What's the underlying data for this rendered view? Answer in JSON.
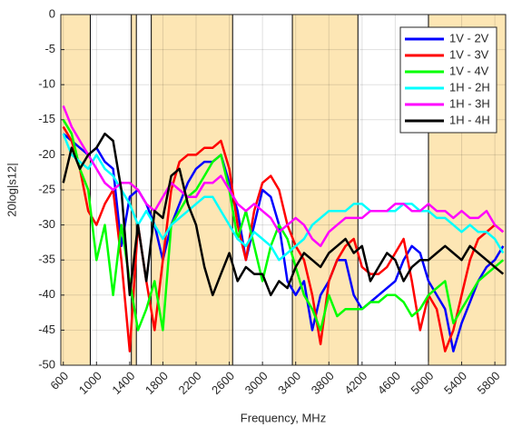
{
  "chart_data": {
    "type": "line",
    "x_label": "Frequency, MHz",
    "y_label": "20log|s12|",
    "xlim": [
      570,
      5930
    ],
    "ylim": [
      -50,
      0
    ],
    "xticks": [
      600,
      1000,
      1400,
      1800,
      2200,
      2600,
      3000,
      3400,
      3800,
      4200,
      4600,
      5000,
      5400,
      5800
    ],
    "yticks": [
      0,
      -5,
      -10,
      -15,
      -20,
      -25,
      -30,
      -35,
      -40,
      -45,
      -50
    ],
    "grid": true,
    "legend": "top-right",
    "bands": [
      [
        570,
        925
      ],
      [
        1420,
        1480
      ],
      [
        1660,
        2640
      ],
      [
        3360,
        4150
      ],
      [
        5000,
        5930
      ]
    ],
    "band_color": "#fde6b4",
    "x": [
      600,
      700,
      800,
      900,
      1000,
      1100,
      1200,
      1300,
      1400,
      1500,
      1600,
      1700,
      1800,
      1900,
      2000,
      2100,
      2200,
      2300,
      2400,
      2500,
      2600,
      2700,
      2800,
      2900,
      3000,
      3100,
      3200,
      3300,
      3400,
      3500,
      3600,
      3700,
      3800,
      3900,
      4000,
      4100,
      4200,
      4300,
      4400,
      4500,
      4600,
      4700,
      4800,
      4900,
      5000,
      5100,
      5200,
      5300,
      5400,
      5500,
      5600,
      5700,
      5800,
      5900
    ],
    "series": [
      {
        "name": "1V - 2V",
        "color": "#0000ff",
        "values": [
          -17,
          -18,
          -19,
          -20,
          -19,
          -21,
          -22,
          -33,
          -26,
          -25,
          -27,
          -30,
          -35,
          -30,
          -27,
          -24,
          -22,
          -21,
          -21,
          -20,
          -24,
          -28,
          -35,
          -30,
          -25,
          -26,
          -30,
          -38,
          -40,
          -38,
          -45,
          -40,
          -38,
          -35,
          -35,
          -40,
          -42,
          -41,
          -40,
          -39,
          -38,
          -35,
          -33,
          -34,
          -38,
          -40,
          -42,
          -48,
          -44,
          -41,
          -38,
          -36,
          -35,
          -33
        ]
      },
      {
        "name": "1V - 3V",
        "color": "#ff0000",
        "values": [
          -16,
          -18,
          -22,
          -28,
          -30,
          -27,
          -25,
          -35,
          -48,
          -30,
          -38,
          -45,
          -35,
          -25,
          -21,
          -20,
          -20,
          -19,
          -19,
          -18,
          -22,
          -30,
          -35,
          -28,
          -24,
          -23,
          -25,
          -30,
          -33,
          -35,
          -40,
          -47,
          -38,
          -35,
          -33,
          -32,
          -36,
          -37,
          -37,
          -36,
          -34,
          -32,
          -38,
          -45,
          -40,
          -42,
          -48,
          -45,
          -40,
          -35,
          -32,
          -31,
          -30,
          -31
        ]
      },
      {
        "name": "1V - 4V",
        "color": "#00ff00",
        "values": [
          -15,
          -17,
          -22,
          -25,
          -35,
          -30,
          -40,
          -30,
          -38,
          -45,
          -42,
          -38,
          -45,
          -30,
          -28,
          -26,
          -25,
          -23,
          -21,
          -20,
          -25,
          -32,
          -28,
          -33,
          -38,
          -33,
          -30,
          -32,
          -36,
          -40,
          -42,
          -45,
          -40,
          -43,
          -42,
          -42,
          -42,
          -41,
          -41,
          -40,
          -40,
          -41,
          -43,
          -42,
          -40,
          -39,
          -38,
          -44,
          -42,
          -40,
          -38,
          -37,
          -36,
          -35
        ]
      },
      {
        "name": "1H - 2H",
        "color": "#00ffff",
        "values": [
          -17,
          -20,
          -21,
          -22,
          -20,
          -22,
          -23,
          -25,
          -27,
          -30,
          -28,
          -30,
          -32,
          -30,
          -29,
          -28,
          -27,
          -26,
          -26,
          -28,
          -30,
          -32,
          -33,
          -31,
          -32,
          -33,
          -35,
          -34,
          -33,
          -32,
          -30,
          -29,
          -28,
          -28,
          -28,
          -27,
          -27,
          -28,
          -28,
          -28,
          -28,
          -27,
          -27,
          -28,
          -28,
          -29,
          -29,
          -30,
          -31,
          -30,
          -31,
          -31,
          -32,
          -34
        ]
      },
      {
        "name": "1H - 3H",
        "color": "#ff00ff",
        "values": [
          -13,
          -16,
          -18,
          -20,
          -22,
          -24,
          -25,
          -24,
          -24,
          -25,
          -27,
          -28,
          -26,
          -24,
          -25,
          -26,
          -26,
          -24,
          -24,
          -23,
          -25,
          -27,
          -28,
          -27,
          -28,
          -29,
          -31,
          -30,
          -29,
          -30,
          -32,
          -33,
          -31,
          -30,
          -29,
          -29,
          -29,
          -28,
          -28,
          -28,
          -27,
          -27,
          -28,
          -28,
          -27,
          -28,
          -28,
          -29,
          -28,
          -29,
          -29,
          -28,
          -30,
          -31
        ]
      },
      {
        "name": "1H - 4H",
        "color": "#000000",
        "values": [
          -24,
          -19,
          -22,
          -20,
          -19,
          -17,
          -18,
          -25,
          -40,
          -30,
          -38,
          -28,
          -29,
          -23,
          -22,
          -27,
          -30,
          -36,
          -40,
          -37,
          -34,
          -38,
          -36,
          -37,
          -37,
          -40,
          -38,
          -39,
          -36,
          -34,
          -35,
          -36,
          -34,
          -33,
          -32,
          -34,
          -33,
          -38,
          -36,
          -34,
          -35,
          -38,
          -36,
          -35,
          -35,
          -34,
          -33,
          -34,
          -35,
          -33,
          -34,
          -35,
          -36,
          -37
        ]
      }
    ]
  }
}
